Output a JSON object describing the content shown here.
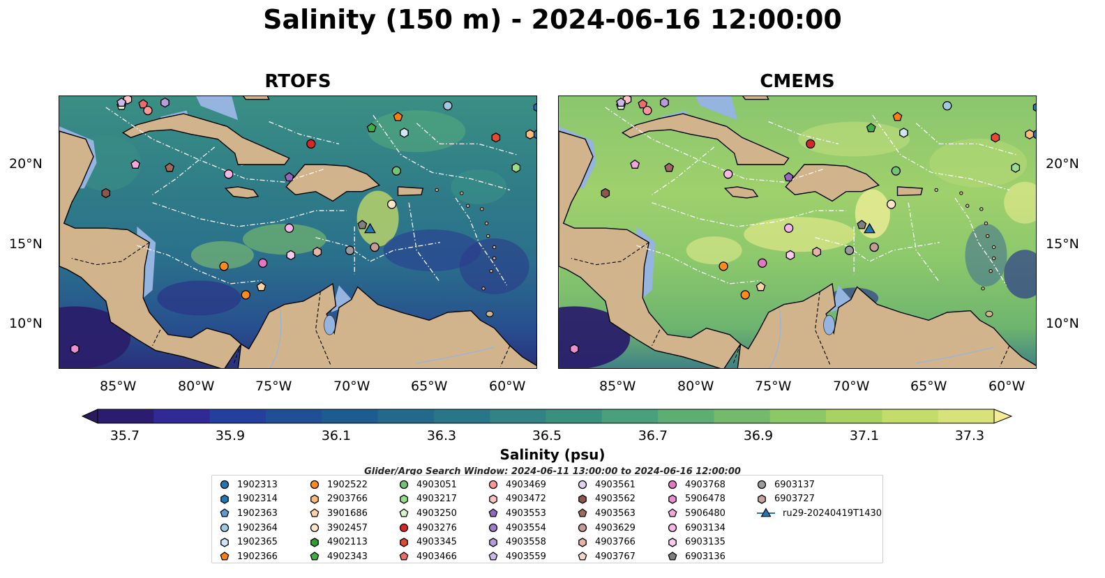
{
  "title": "Salinity (150 m) - 2024-06-16 12:00:00",
  "panels": [
    {
      "title": "RTOFS"
    },
    {
      "title": "CMEMS"
    }
  ],
  "lon_ticks": [
    "85°W",
    "80°W",
    "75°W",
    "70°W",
    "65°W",
    "60°W"
  ],
  "lat_ticks": [
    "20°N",
    "15°N",
    "10°N"
  ],
  "colorbar": {
    "label": "Salinity (psu)",
    "ticks": [
      "35.7",
      "35.9",
      "36.1",
      "36.3",
      "36.5",
      "36.7",
      "36.9",
      "37.1",
      "37.3"
    ],
    "min": 35.7,
    "max": 37.3,
    "colormap": "haline",
    "extend": "both"
  },
  "search_window": "Glider/Argo Search Window: 2024-06-11 13:00:00 to 2024-06-16 12:00:00",
  "legend": [
    {
      "id": "1902313",
      "marker": "circle",
      "color": "#1f77b4"
    },
    {
      "id": "1902314",
      "marker": "hexagon",
      "color": "#1f77b4"
    },
    {
      "id": "1902363",
      "marker": "pentagon",
      "color": "#5b9bd5"
    },
    {
      "id": "1902364",
      "marker": "circle",
      "color": "#9ecae1"
    },
    {
      "id": "1902365",
      "marker": "hexagon",
      "color": "#cfe6f5"
    },
    {
      "id": "1902366",
      "marker": "pentagon",
      "color": "#ff7f0e"
    },
    {
      "id": "1902522",
      "marker": "circle",
      "color": "#ff8c1a"
    },
    {
      "id": "2903766",
      "marker": "hexagon",
      "color": "#ffbb78"
    },
    {
      "id": "3901686",
      "marker": "pentagon",
      "color": "#ffd4a3"
    },
    {
      "id": "3902457",
      "marker": "circle",
      "color": "#ffe5c7"
    },
    {
      "id": "4902113",
      "marker": "hexagon",
      "color": "#2ca02c"
    },
    {
      "id": "4902343",
      "marker": "pentagon",
      "color": "#3cb043"
    },
    {
      "id": "4903051",
      "marker": "circle",
      "color": "#74c476"
    },
    {
      "id": "4903217",
      "marker": "hexagon",
      "color": "#98df8a"
    },
    {
      "id": "4903250",
      "marker": "pentagon",
      "color": "#d9f7c9"
    },
    {
      "id": "4903276",
      "marker": "circle",
      "color": "#d62728"
    },
    {
      "id": "4903345",
      "marker": "hexagon",
      "color": "#e34a33"
    },
    {
      "id": "4903466",
      "marker": "pentagon",
      "color": "#f06b6b"
    },
    {
      "id": "4903469",
      "marker": "circle",
      "color": "#ff9896"
    },
    {
      "id": "4903472",
      "marker": "hexagon",
      "color": "#ffc4c0"
    },
    {
      "id": "4903553",
      "marker": "pentagon",
      "color": "#9467bd"
    },
    {
      "id": "4903554",
      "marker": "circle",
      "color": "#a07cc8"
    },
    {
      "id": "4903558",
      "marker": "hexagon",
      "color": "#b89bdb"
    },
    {
      "id": "4903559",
      "marker": "pentagon",
      "color": "#cdb8ec"
    },
    {
      "id": "4903561",
      "marker": "circle",
      "color": "#e0d3f2"
    },
    {
      "id": "4903562",
      "marker": "hexagon",
      "color": "#8c564b"
    },
    {
      "id": "4903563",
      "marker": "pentagon",
      "color": "#a0695c"
    },
    {
      "id": "4903629",
      "marker": "circle",
      "color": "#c49c94"
    },
    {
      "id": "4903766",
      "marker": "hexagon",
      "color": "#e7b5a8"
    },
    {
      "id": "4903767",
      "marker": "pentagon",
      "color": "#f5d5c6"
    },
    {
      "id": "4903768",
      "marker": "circle",
      "color": "#e377c2"
    },
    {
      "id": "5906478",
      "marker": "hexagon",
      "color": "#ea8fd0"
    },
    {
      "id": "5906480",
      "marker": "pentagon",
      "color": "#f4a6dc"
    },
    {
      "id": "6903134",
      "marker": "circle",
      "color": "#f7b6e6"
    },
    {
      "id": "6903135",
      "marker": "hexagon",
      "color": "#f9cdeb"
    },
    {
      "id": "6903136",
      "marker": "pentagon",
      "color": "#7f7f7f"
    },
    {
      "id": "6903137",
      "marker": "circle",
      "color": "#9a9a9a"
    },
    {
      "id": "6903727",
      "marker": "hexagon",
      "color": "#c7a59c"
    },
    {
      "id": "ru29-20240419T1430",
      "marker": "triangle-line",
      "color": "#1f77b4"
    }
  ],
  "floats_on_map": [
    {
      "id": "1902313",
      "lon": -58.2,
      "lat": 21.8
    },
    {
      "id": "1902314",
      "lon": -58.2,
      "lat": 23.5
    },
    {
      "id": "1902364",
      "lon": -64.0,
      "lat": 23.6
    },
    {
      "id": "1902365",
      "lon": -66.8,
      "lat": 21.9
    },
    {
      "id": "1902366",
      "lon": -67.2,
      "lat": 22.9
    },
    {
      "id": "1902522",
      "lon": -77.0,
      "lat": 11.7
    },
    {
      "id": "2903766",
      "lon": -58.7,
      "lat": 21.8
    },
    {
      "id": "3901686",
      "lon": -76.0,
      "lat": 12.2
    },
    {
      "id": "3902457",
      "lon": -67.6,
      "lat": 17.4
    },
    {
      "id": "4902343",
      "lon": -68.9,
      "lat": 22.2
    },
    {
      "id": "4903051",
      "lon": -67.3,
      "lat": 19.5
    },
    {
      "id": "4903217",
      "lon": -59.6,
      "lat": 19.7
    },
    {
      "id": "4903250",
      "lon": -85.0,
      "lat": 23.6
    },
    {
      "id": "4903276",
      "lon": -72.8,
      "lat": 21.2
    },
    {
      "id": "4903345",
      "lon": -60.9,
      "lat": 21.6
    },
    {
      "id": "4903466",
      "lon": -83.6,
      "lat": 23.7
    },
    {
      "id": "4903469",
      "lon": -83.3,
      "lat": 23.3
    },
    {
      "id": "4903472",
      "lon": -84.6,
      "lat": 24.0
    },
    {
      "id": "4903553",
      "lon": -74.2,
      "lat": 19.1
    },
    {
      "id": "4903558",
      "lon": -82.2,
      "lat": 23.8
    },
    {
      "id": "4903559",
      "lon": -85.0,
      "lat": 23.8
    },
    {
      "id": "4903562",
      "lon": -86.0,
      "lat": 18.1
    },
    {
      "id": "4903563",
      "lon": -81.9,
      "lat": 19.7
    },
    {
      "id": "4903629",
      "lon": -68.7,
      "lat": 14.7
    },
    {
      "id": "4903766",
      "lon": -72.4,
      "lat": 14.4
    },
    {
      "id": "4903768",
      "lon": -75.9,
      "lat": 13.7
    },
    {
      "id": "5906478",
      "lon": -88.0,
      "lat": 8.3
    },
    {
      "id": "5906480",
      "lon": -84.1,
      "lat": 19.9
    },
    {
      "id": "6903134",
      "lon": -78.1,
      "lat": 19.3
    },
    {
      "id": "6903135",
      "lon": -74.1,
      "lat": 14.2
    },
    {
      "id": "6903134",
      "lon": -74.2,
      "lat": 15.9
    },
    {
      "id": "6903136",
      "lon": -69.5,
      "lat": 16.1
    },
    {
      "id": "6903137",
      "lon": -70.3,
      "lat": 14.5
    },
    {
      "id": "1902522",
      "lon": -78.4,
      "lat": 13.5
    },
    {
      "id": "ru29-20240419T1430",
      "lon": -69.0,
      "lat": 15.8
    }
  ]
}
